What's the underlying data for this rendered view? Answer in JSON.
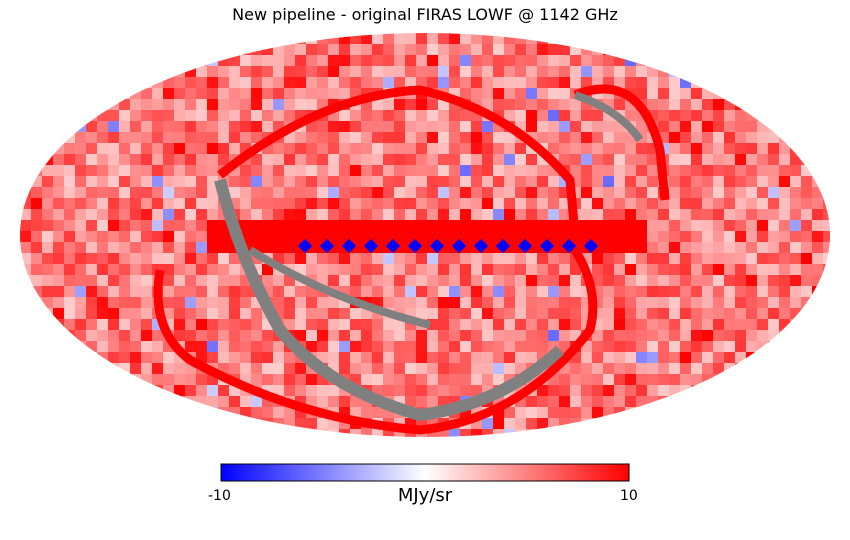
{
  "title": "New pipeline - original FIRAS LOWF @ 1142 GHz",
  "projection": "mollweide",
  "colormap": {
    "name": "bwr",
    "colors": [
      "#0000ff",
      "#ffffff",
      "#ff0000"
    ],
    "min": -10,
    "max": 10,
    "min_label": "-10",
    "max_label": "10",
    "unit": "MJy/sr",
    "bad_pixel_color": "#808080"
  }
}
